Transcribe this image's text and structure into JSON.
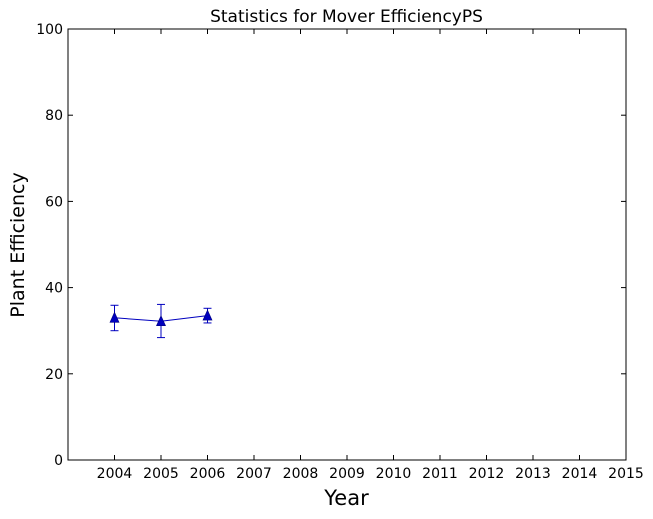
{
  "chart_data": {
    "type": "line",
    "title": "Statistics for Mover EfficiencyPS",
    "xlabel": "Year",
    "ylabel": "Plant Efficiency",
    "xlim": [
      2003,
      2015
    ],
    "ylim": [
      0,
      100
    ],
    "xticks": [
      "2004",
      "2005",
      "2006",
      "2007",
      "2008",
      "2009",
      "2010",
      "2011",
      "2012",
      "2013",
      "2014",
      "2015"
    ],
    "yticks": [
      "0",
      "20",
      "40",
      "60",
      "80",
      "100"
    ],
    "grid": false,
    "series": [
      {
        "marker": "triangle",
        "color": "#0000bf",
        "x": [
          2004,
          2005,
          2006
        ],
        "y": [
          33.0,
          32.2,
          33.5
        ],
        "yerr_low": [
          30.0,
          28.4,
          31.8
        ],
        "yerr_high": [
          35.9,
          36.1,
          35.2
        ]
      }
    ]
  }
}
